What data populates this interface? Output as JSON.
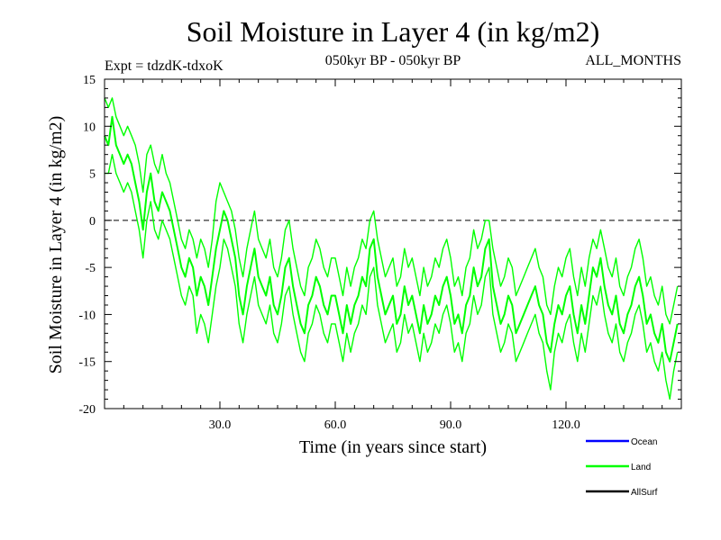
{
  "chart_data": {
    "type": "line",
    "title": "Soil Moisture in Layer 4 (in kg/m2)",
    "subtitle_left": "Expt = tdzdK-tdxoK",
    "subtitle_center": "050kyr BP - 050kyr BP",
    "subtitle_right": "ALL_MONTHS",
    "xlabel": "Time (in years since start)",
    "ylabel": "Soil Moisture in Layer 4 (in kg/m2)",
    "xlim": [
      0,
      150
    ],
    "ylim": [
      -20,
      15
    ],
    "x_ticks": [
      30,
      60,
      90,
      120
    ],
    "x_tick_labels": [
      "30.0",
      "60.0",
      "90.0",
      "120.0"
    ],
    "y_ticks": [
      15,
      10,
      5,
      0,
      -5,
      -10,
      -15,
      -20
    ],
    "y_tick_labels": [
      "15",
      "10",
      "5",
      "0",
      "-5",
      "-10",
      "-15",
      "-20"
    ],
    "zero_line": 0,
    "legend": [
      {
        "name": "Ocean",
        "color": "#0000ff"
      },
      {
        "name": "Land",
        "color": "#00ff00"
      },
      {
        "name": "AllSurf",
        "color": "#000000"
      }
    ],
    "series": [
      {
        "name": "Land",
        "color": "#00ff00",
        "x_start": 0,
        "x_step": 1,
        "values": [
          9,
          8,
          11,
          8,
          7,
          6,
          7,
          6,
          4,
          2,
          -1,
          3,
          5,
          2,
          1,
          3,
          2,
          1,
          -1,
          -3,
          -5,
          -6,
          -4,
          -5,
          -8,
          -6,
          -7,
          -9,
          -6,
          -3,
          -1,
          1,
          0,
          -2,
          -4,
          -8,
          -10,
          -7,
          -5,
          -3,
          -6,
          -7,
          -8,
          -6,
          -9,
          -10,
          -8,
          -5,
          -4,
          -7,
          -9,
          -11,
          -12,
          -9,
          -8,
          -6,
          -7,
          -9,
          -10,
          -8,
          -8,
          -10,
          -12,
          -9,
          -11,
          -9,
          -8,
          -6,
          -7,
          -3,
          -2,
          -6,
          -8,
          -10,
          -9,
          -8,
          -11,
          -10,
          -7,
          -9,
          -8,
          -10,
          -12,
          -9,
          -11,
          -10,
          -8,
          -9,
          -7,
          -6,
          -8,
          -11,
          -10,
          -12,
          -9,
          -8,
          -5,
          -7,
          -6,
          -3,
          -2,
          -7,
          -9,
          -11,
          -10,
          -8,
          -9,
          -12,
          -11,
          -10,
          -9,
          -8,
          -7,
          -9,
          -10,
          -13,
          -14,
          -11,
          -9,
          -10,
          -8,
          -7,
          -10,
          -12,
          -9,
          -11,
          -8,
          -5,
          -6,
          -4,
          -7,
          -9,
          -10,
          -8,
          -11,
          -12,
          -10,
          -9,
          -7,
          -6,
          -8,
          -11,
          -10,
          -12,
          -13,
          -11,
          -14,
          -15,
          -13,
          -11
        ]
      },
      {
        "name": "Land (upper envelope)",
        "color": "#00ff00",
        "x_start": 0,
        "x_step": 1,
        "values": [
          13,
          12,
          13,
          11,
          10,
          9,
          10,
          9,
          8,
          6,
          3,
          7,
          8,
          6,
          5,
          7,
          5,
          4,
          2,
          0,
          -2,
          -3,
          -1,
          -2,
          -4,
          -2,
          -3,
          -5,
          -2,
          2,
          4,
          3,
          2,
          1,
          -1,
          -4,
          -6,
          -3,
          -1,
          1,
          -2,
          -3,
          -4,
          -2,
          -5,
          -6,
          -4,
          -1,
          0,
          -3,
          -5,
          -7,
          -8,
          -5,
          -4,
          -2,
          -3,
          -5,
          -6,
          -4,
          -4,
          -6,
          -8,
          -5,
          -7,
          -5,
          -4,
          -2,
          -3,
          0,
          1,
          -2,
          -4,
          -6,
          -5,
          -4,
          -7,
          -6,
          -3,
          -5,
          -4,
          -6,
          -8,
          -5,
          -7,
          -6,
          -4,
          -5,
          -3,
          -2,
          -4,
          -7,
          -6,
          -8,
          -5,
          -4,
          -1,
          -3,
          -2,
          0,
          0,
          -3,
          -5,
          -7,
          -6,
          -4,
          -5,
          -8,
          -7,
          -6,
          -5,
          -4,
          -3,
          -5,
          -6,
          -9,
          -10,
          -7,
          -5,
          -6,
          -4,
          -3,
          -6,
          -8,
          -5,
          -7,
          -4,
          -2,
          -3,
          -1,
          -3,
          -5,
          -6,
          -4,
          -7,
          -8,
          -6,
          -5,
          -3,
          -2,
          -4,
          -7,
          -6,
          -8,
          -9,
          -7,
          -10,
          -11,
          -9,
          -7
        ]
      },
      {
        "name": "Land (lower envelope)",
        "color": "#00ff00",
        "x_start": 0,
        "x_step": 1,
        "values": [
          5,
          5,
          7,
          5,
          4,
          3,
          4,
          3,
          1,
          -1,
          -4,
          0,
          2,
          -1,
          -2,
          0,
          -1,
          -2,
          -4,
          -6,
          -8,
          -9,
          -7,
          -8,
          -12,
          -10,
          -11,
          -13,
          -10,
          -7,
          -5,
          -2,
          -3,
          -5,
          -7,
          -11,
          -13,
          -10,
          -8,
          -6,
          -9,
          -10,
          -11,
          -9,
          -12,
          -13,
          -11,
          -8,
          -7,
          -10,
          -12,
          -14,
          -15,
          -12,
          -11,
          -9,
          -10,
          -12,
          -13,
          -11,
          -11,
          -13,
          -15,
          -12,
          -14,
          -12,
          -11,
          -9,
          -10,
          -6,
          -5,
          -9,
          -11,
          -13,
          -12,
          -11,
          -14,
          -13,
          -10,
          -12,
          -11,
          -13,
          -15,
          -12,
          -14,
          -13,
          -11,
          -12,
          -10,
          -9,
          -11,
          -14,
          -13,
          -15,
          -12,
          -11,
          -8,
          -10,
          -9,
          -6,
          -5,
          -10,
          -12,
          -14,
          -13,
          -11,
          -12,
          -15,
          -14,
          -13,
          -12,
          -11,
          -10,
          -12,
          -13,
          -16,
          -18,
          -14,
          -12,
          -13,
          -11,
          -10,
          -13,
          -15,
          -12,
          -14,
          -11,
          -8,
          -9,
          -7,
          -10,
          -12,
          -13,
          -11,
          -14,
          -15,
          -13,
          -12,
          -10,
          -9,
          -11,
          -14,
          -13,
          -15,
          -16,
          -14,
          -17,
          -19,
          -16,
          -14
        ]
      }
    ]
  }
}
